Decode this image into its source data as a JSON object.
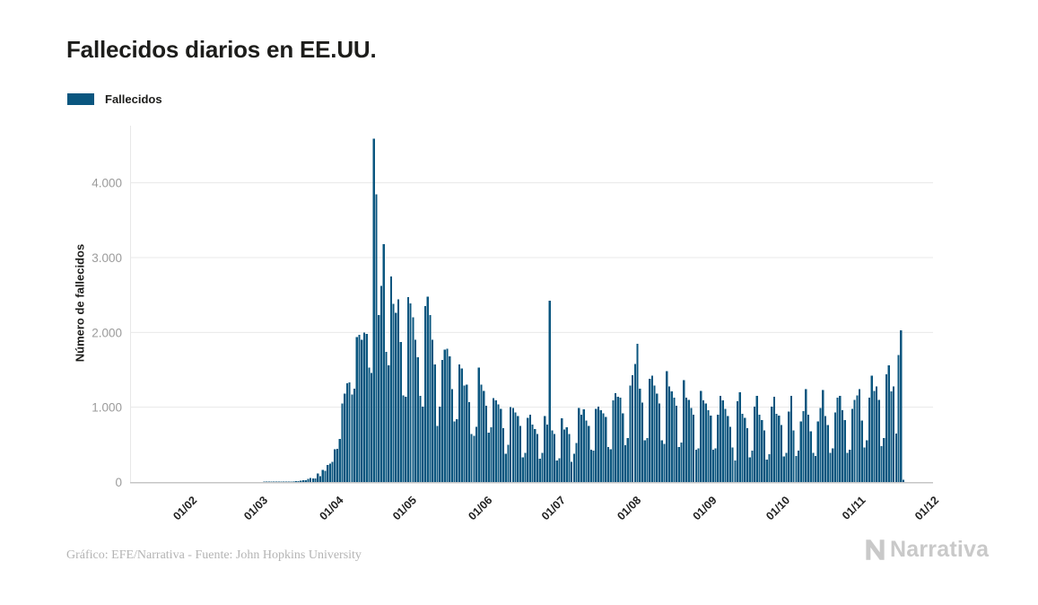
{
  "title": "Fallecidos diarios en EE.UU.",
  "legend": {
    "label": "Fallecidos",
    "color": "#0a567f"
  },
  "footer": {
    "credit": "Gráfico: EFE/Narrativa - Fuente: John Hopkins University",
    "brand": "Narrativa"
  },
  "colors": {
    "bar": "#0a567f",
    "grid": "#e8e8e8",
    "axis_line": "#c6c6c6",
    "y_tick_text": "#9b9b9b",
    "x_tick_text": "#222222",
    "brand_gray": "#c9c9c9"
  },
  "chart_data": {
    "type": "bar",
    "title": "Fallecidos diarios en EE.UU.",
    "xlabel": "",
    "ylabel": "Número de fallecidos",
    "ylim": [
      0,
      4650
    ],
    "yticks": [
      0,
      1000,
      2000,
      3000,
      4000
    ],
    "ytick_labels": [
      "0",
      "1.000",
      "2.000",
      "3.000",
      "4.000"
    ],
    "grid": true,
    "legend_position": "top-left",
    "start_date": "22/01/2020",
    "x_tick_labels": [
      "01/02",
      "01/03",
      "01/04",
      "01/05",
      "01/06",
      "01/07",
      "01/08",
      "01/09",
      "01/10",
      "01/11",
      "01/12"
    ],
    "x_tick_day_index": [
      10,
      39,
      70,
      100,
      131,
      161,
      192,
      223,
      253,
      284,
      314
    ],
    "x_domain_days": 314,
    "series": [
      {
        "name": "Fallecidos",
        "values": [
          0,
          0,
          0,
          0,
          0,
          0,
          0,
          0,
          0,
          0,
          0,
          0,
          0,
          0,
          0,
          0,
          0,
          0,
          0,
          0,
          0,
          0,
          0,
          0,
          0,
          0,
          0,
          0,
          0,
          0,
          0,
          0,
          0,
          0,
          0,
          0,
          0,
          0,
          1,
          1,
          2,
          6,
          3,
          4,
          3,
          4,
          5,
          4,
          6,
          8,
          7,
          10,
          12,
          19,
          24,
          27,
          42,
          57,
          50,
          47,
          112,
          81,
          165,
          152,
          226,
          248,
          270,
          436,
          442,
          579,
          1050,
          1180,
          1320,
          1330,
          1170,
          1250,
          1940,
          1970,
          1900,
          2000,
          1980,
          1530,
          1460,
          4591,
          3844,
          2230,
          2620,
          3179,
          1740,
          1560,
          2750,
          2380,
          2260,
          2440,
          1870,
          1160,
          1140,
          2470,
          2390,
          2200,
          1900,
          1670,
          1150,
          1010,
          2350,
          2480,
          2230,
          1900,
          1570,
          750,
          1010,
          1630,
          1770,
          1780,
          1680,
          1240,
          810,
          840,
          1570,
          1520,
          1290,
          1300,
          1070,
          640,
          620,
          740,
          1530,
          1300,
          1220,
          1020,
          660,
          730,
          1120,
          1090,
          1040,
          980,
          720,
          380,
          500,
          1000,
          990,
          930,
          880,
          750,
          330,
          390,
          860,
          900,
          770,
          710,
          640,
          310,
          390,
          880,
          770,
          2425,
          690,
          640,
          290,
          320,
          850,
          700,
          730,
          640,
          270,
          380,
          520,
          990,
          900,
          970,
          820,
          750,
          430,
          420,
          980,
          1010,
          960,
          920,
          870,
          470,
          440,
          1090,
          1190,
          1140,
          1130,
          920,
          490,
          590,
          1290,
          1430,
          1580,
          1850,
          1250,
          1060,
          560,
          590,
          1380,
          1420,
          1290,
          1180,
          1050,
          560,
          510,
          1480,
          1280,
          1210,
          1130,
          1020,
          470,
          530,
          1360,
          1130,
          1100,
          990,
          900,
          430,
          450,
          1220,
          1090,
          1050,
          960,
          890,
          430,
          450,
          900,
          1150,
          1090,
          980,
          880,
          740,
          460,
          290,
          1080,
          1200,
          910,
          860,
          720,
          330,
          420,
          1010,
          1150,
          900,
          830,
          690,
          300,
          370,
          1010,
          1140,
          910,
          890,
          760,
          340,
          390,
          940,
          1150,
          690,
          350,
          420,
          810,
          950,
          1240,
          900,
          680,
          390,
          350,
          810,
          990,
          1230,
          880,
          760,
          390,
          450,
          930,
          1130,
          1150,
          960,
          830,
          390,
          430,
          980,
          1100,
          1160,
          1240,
          820,
          460,
          560,
          1130,
          1420,
          1220,
          1280,
          1100,
          480,
          590,
          1440,
          1560,
          1210,
          1280,
          650,
          1700,
          2030,
          30
        ]
      }
    ]
  }
}
